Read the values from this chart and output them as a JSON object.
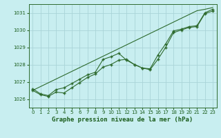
{
  "bg_color": "#c8eef0",
  "grid_color": "#aad4d8",
  "line_color": "#2d6a2d",
  "marker_color": "#2d6a2d",
  "title": "Graphe pression niveau de la mer (hPa)",
  "title_color": "#1a5c1a",
  "ylim": [
    1025.5,
    1031.5
  ],
  "yticks": [
    1026,
    1027,
    1028,
    1029,
    1030,
    1031
  ],
  "xlim": [
    -0.5,
    23.5
  ],
  "xticks": [
    0,
    1,
    2,
    3,
    4,
    5,
    6,
    7,
    8,
    9,
    10,
    11,
    12,
    13,
    14,
    15,
    16,
    17,
    18,
    19,
    20,
    21,
    22,
    23
  ],
  "series_straight": [
    1026.5,
    1026.72,
    1026.94,
    1027.16,
    1027.38,
    1027.6,
    1027.82,
    1028.04,
    1028.26,
    1028.48,
    1028.7,
    1028.92,
    1029.14,
    1029.36,
    1029.58,
    1029.8,
    1030.02,
    1030.24,
    1030.46,
    1030.68,
    1030.9,
    1031.12,
    1031.2,
    1031.3
  ],
  "series_upper": [
    1026.6,
    1026.3,
    1026.2,
    1026.55,
    1026.65,
    1026.9,
    1027.15,
    1027.4,
    1027.55,
    1028.3,
    1028.45,
    1028.65,
    1028.25,
    1028.0,
    1027.8,
    1027.75,
    1028.55,
    1029.2,
    1029.95,
    1030.05,
    1030.2,
    1030.25,
    1031.0,
    1031.2
  ],
  "series_lower": [
    1026.5,
    1026.25,
    1026.15,
    1026.4,
    1026.35,
    1026.65,
    1026.95,
    1027.25,
    1027.45,
    1027.85,
    1028.0,
    1028.25,
    1028.3,
    1028.0,
    1027.8,
    1027.7,
    1028.3,
    1029.0,
    1029.85,
    1030.0,
    1030.15,
    1030.2,
    1030.95,
    1031.1
  ]
}
